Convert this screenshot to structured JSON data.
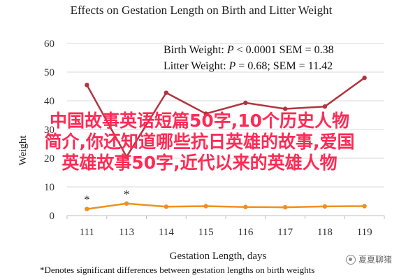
{
  "chart_data": {
    "type": "line",
    "title": "Effects on Gestation Length on Birth and Litter Weight",
    "xlabel": "Gestation Length, days",
    "ylabel": "Weight",
    "categories": [
      "111",
      "113",
      "114",
      "115",
      "116",
      "117",
      "118",
      "119"
    ],
    "ylim": [
      0,
      60
    ],
    "yticks": [
      "0",
      "10",
      "20",
      "30",
      "40",
      "50",
      "60"
    ],
    "grid": true,
    "series": [
      {
        "name": "Litter Weight",
        "color": "#b0353f",
        "values": [
          45.5,
          20.5,
          42.8,
          35.5,
          39.3,
          37.2,
          38.0,
          48.0
        ]
      },
      {
        "name": "Birth Weight",
        "color": "#f0901c",
        "values": [
          2.3,
          4.2,
          3.1,
          3.3,
          3.0,
          2.9,
          3.2,
          3.3
        ]
      }
    ],
    "stats": [
      {
        "prefix": "Birth Weight: ",
        "p": "P",
        "suffix": " < 0.0001 SEM = 0.38"
      },
      {
        "prefix": "Litter Weight: ",
        "p": "P",
        "suffix": " = 0.68; SEM = 11.42"
      }
    ],
    "significance_marks": [
      {
        "category": "111",
        "symbol": "*"
      },
      {
        "category": "113",
        "symbol": "*"
      }
    ],
    "footnote": "*Denotes significant differences between gestation lengths on birth weights"
  },
  "overlay_text": [
    "中国故事英语短篇50字,10个历史人物",
    "简介,你还知道哪些抗日英雄的故事,爱国",
    "英雄故事50字,近代以来的英雄人物"
  ],
  "watermark": {
    "label": "夏夏聊猪",
    "icon": "wechat-icon"
  }
}
